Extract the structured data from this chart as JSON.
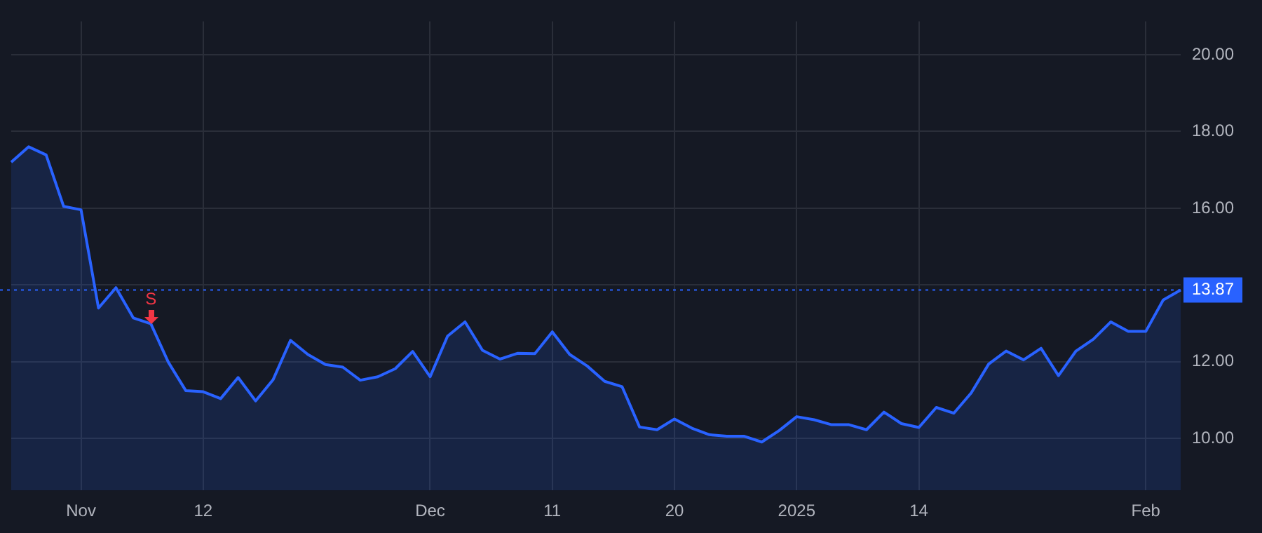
{
  "chart_data": {
    "type": "area",
    "categories": [
      null,
      null,
      null,
      null,
      "Nov",
      null,
      null,
      null,
      null,
      null,
      null,
      "12",
      null,
      null,
      null,
      null,
      null,
      null,
      null,
      null,
      null,
      null,
      null,
      null,
      "Dec",
      null,
      null,
      null,
      null,
      null,
      null,
      "11",
      null,
      null,
      null,
      null,
      null,
      null,
      "20",
      null,
      null,
      null,
      null,
      null,
      null,
      "2025",
      null,
      null,
      null,
      null,
      null,
      null,
      "14",
      null,
      null,
      null,
      null,
      null,
      null,
      null,
      null,
      null,
      null,
      null,
      null,
      "Feb",
      null,
      null
    ],
    "series": [
      {
        "color": "#2962ff",
        "values": [
          17.2,
          17.6,
          17.39,
          16.05,
          15.96,
          13.4,
          13.93,
          13.14,
          12.99,
          11.99,
          11.25,
          11.22,
          11.04,
          11.59,
          10.98,
          11.53,
          12.56,
          12.19,
          11.93,
          11.86,
          11.52,
          11.61,
          11.82,
          12.27,
          11.61,
          12.67,
          13.04,
          12.3,
          12.07,
          12.22,
          12.21,
          12.78,
          12.19,
          11.89,
          11.49,
          11.35,
          10.3,
          10.23,
          10.51,
          10.27,
          10.1,
          10.06,
          10.06,
          9.91,
          10.21,
          10.57,
          10.49,
          10.36,
          10.36,
          10.23,
          10.69,
          10.39,
          10.29,
          10.81,
          10.66,
          11.19,
          11.94,
          12.28,
          12.05,
          12.35,
          11.64,
          12.28,
          12.59,
          13.04,
          12.79,
          12.79,
          13.61,
          13.87
        ]
      }
    ],
    "ylim": [
      8.65,
      20.87
    ],
    "yticks": [
      {
        "value": 10,
        "label": "10.00"
      },
      {
        "value": 12,
        "label": "12.00"
      },
      {
        "value": 14,
        "label": null
      },
      {
        "value": 16,
        "label": "16.00"
      },
      {
        "value": 18,
        "label": "18.00"
      },
      {
        "value": 20,
        "label": "20.00"
      }
    ],
    "grid": true,
    "ref_lines": [
      {
        "axis": "y",
        "value": 13.87,
        "label": "13.87",
        "color": "#2962ff",
        "line_style": "dotted"
      }
    ],
    "annotations": [
      "S"
    ]
  }
}
